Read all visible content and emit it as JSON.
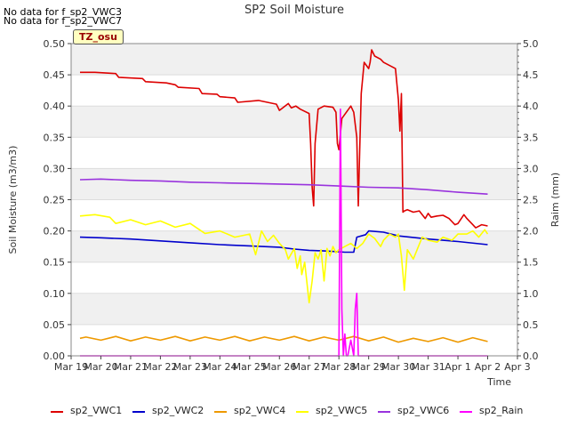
{
  "notes": [
    "No data for f_sp2_VWC3",
    "No data for f_sp2_VWC7"
  ],
  "badge": "TZ_osu",
  "chart_data": {
    "type": "line",
    "title": "SP2 Soil Moisture",
    "xlabel": "Time",
    "ylabel": "Soil Moisture (m3/m3)",
    "y2label": "Raim (mm)",
    "ylim": [
      0.0,
      0.5
    ],
    "y2lim": [
      0.0,
      5.0
    ],
    "xlim": [
      0,
      15
    ],
    "y_ticks": [
      "0.00",
      "0.05",
      "0.10",
      "0.15",
      "0.20",
      "0.25",
      "0.30",
      "0.35",
      "0.40",
      "0.45",
      "0.50"
    ],
    "y2_ticks": [
      "0.0",
      "0.5",
      "1.0",
      "1.5",
      "2.0",
      "2.5",
      "3.0",
      "3.5",
      "4.0",
      "4.5",
      "5.0"
    ],
    "x_ticks": [
      "Mar 19",
      "Mar 20",
      "Mar 21",
      "Mar 22",
      "Mar 23",
      "Mar 24",
      "Mar 25",
      "Mar 26",
      "Mar 27",
      "Mar 28",
      "Mar 29",
      "Mar 30",
      "Mar 31",
      "Apr 1",
      "Apr 2",
      "Apr 3"
    ],
    "grid": true,
    "legend_position": "bottom",
    "series": [
      {
        "name": "sp2_VWC1",
        "color": "#dd0000",
        "axis": "left",
        "x": [
          0.3,
          0.8,
          1.5,
          1.6,
          2.4,
          2.5,
          3.2,
          3.5,
          3.6,
          4.3,
          4.4,
          4.9,
          5.0,
          5.5,
          5.6,
          6.3,
          6.4,
          6.9,
          7.0,
          7.3,
          7.4,
          7.55,
          7.7,
          8.0,
          8.05,
          8.1,
          8.15,
          8.2,
          8.3,
          8.5,
          8.8,
          8.9,
          8.95,
          9.0,
          9.1,
          9.4,
          9.5,
          9.6,
          9.65,
          9.7,
          9.75,
          9.85,
          10.0,
          10.05,
          10.1,
          10.2,
          10.4,
          10.5,
          10.9,
          11.0,
          11.05,
          11.1,
          11.15,
          11.2,
          11.3,
          11.5,
          11.7,
          11.9,
          12.0,
          12.1,
          12.3,
          12.5,
          12.7,
          12.9,
          13.0,
          13.2,
          13.3,
          13.5,
          13.6,
          13.8,
          14.0
        ],
        "y": [
          0.454,
          0.454,
          0.452,
          0.446,
          0.444,
          0.439,
          0.437,
          0.434,
          0.43,
          0.428,
          0.42,
          0.419,
          0.415,
          0.413,
          0.406,
          0.409,
          0.408,
          0.403,
          0.393,
          0.404,
          0.397,
          0.4,
          0.395,
          0.388,
          0.34,
          0.27,
          0.24,
          0.34,
          0.395,
          0.4,
          0.398,
          0.39,
          0.34,
          0.33,
          0.38,
          0.4,
          0.39,
          0.35,
          0.24,
          0.33,
          0.42,
          0.47,
          0.46,
          0.47,
          0.49,
          0.48,
          0.475,
          0.47,
          0.46,
          0.41,
          0.36,
          0.42,
          0.23,
          0.232,
          0.234,
          0.23,
          0.232,
          0.22,
          0.228,
          0.222,
          0.224,
          0.225,
          0.22,
          0.21,
          0.212,
          0.226,
          0.22,
          0.21,
          0.205,
          0.21,
          0.208
        ]
      },
      {
        "name": "sp2_VWC2",
        "color": "#0000cc",
        "axis": "left",
        "x": [
          0.3,
          1.0,
          2.0,
          3.0,
          4.0,
          5.0,
          6.0,
          7.0,
          7.5,
          8.0,
          8.5,
          8.9,
          9.2,
          9.5,
          9.6,
          9.9,
          10.0,
          10.5,
          11.0,
          12.0,
          13.0,
          14.0
        ],
        "y": [
          0.19,
          0.189,
          0.187,
          0.184,
          0.181,
          0.178,
          0.176,
          0.174,
          0.171,
          0.169,
          0.168,
          0.167,
          0.166,
          0.166,
          0.19,
          0.194,
          0.2,
          0.198,
          0.192,
          0.187,
          0.183,
          0.178
        ]
      },
      {
        "name": "sp2_VWC4",
        "color": "#ee9900",
        "axis": "left",
        "x": [
          0.3,
          0.5,
          1.0,
          1.5,
          2.0,
          2.5,
          3.0,
          3.5,
          4.0,
          4.5,
          5.0,
          5.5,
          6.0,
          6.5,
          7.0,
          7.5,
          8.0,
          8.5,
          9.0,
          9.5,
          10.0,
          10.5,
          11.0,
          11.5,
          12.0,
          12.5,
          13.0,
          13.5,
          14.0
        ],
        "y": [
          0.028,
          0.03,
          0.025,
          0.031,
          0.024,
          0.03,
          0.025,
          0.031,
          0.024,
          0.03,
          0.025,
          0.031,
          0.024,
          0.03,
          0.025,
          0.031,
          0.024,
          0.03,
          0.025,
          0.031,
          0.024,
          0.03,
          0.022,
          0.028,
          0.023,
          0.029,
          0.022,
          0.029,
          0.023
        ]
      },
      {
        "name": "sp2_VWC5",
        "color": "#ffff00",
        "axis": "left",
        "x": [
          0.3,
          0.8,
          1.3,
          1.5,
          2.0,
          2.5,
          3.0,
          3.5,
          4.0,
          4.5,
          5.0,
          5.5,
          6.0,
          6.2,
          6.4,
          6.6,
          6.8,
          7.0,
          7.2,
          7.3,
          7.5,
          7.6,
          7.7,
          7.75,
          7.85,
          8.0,
          8.1,
          8.2,
          8.3,
          8.4,
          8.5,
          8.6,
          8.7,
          8.8,
          8.9,
          9.0,
          9.2,
          9.4,
          9.6,
          9.8,
          10.0,
          10.2,
          10.4,
          10.5,
          10.7,
          10.9,
          11.0,
          11.1,
          11.2,
          11.3,
          11.5,
          11.8,
          12.0,
          12.3,
          12.5,
          12.8,
          13.0,
          13.3,
          13.5,
          13.7,
          13.9,
          14.0
        ],
        "y": [
          0.224,
          0.226,
          0.222,
          0.212,
          0.218,
          0.21,
          0.216,
          0.206,
          0.212,
          0.196,
          0.2,
          0.19,
          0.195,
          0.162,
          0.2,
          0.183,
          0.193,
          0.18,
          0.17,
          0.155,
          0.172,
          0.14,
          0.16,
          0.13,
          0.15,
          0.085,
          0.12,
          0.165,
          0.155,
          0.17,
          0.12,
          0.172,
          0.16,
          0.175,
          0.165,
          0.17,
          0.175,
          0.18,
          0.172,
          0.18,
          0.195,
          0.188,
          0.175,
          0.185,
          0.195,
          0.19,
          0.195,
          0.16,
          0.105,
          0.17,
          0.155,
          0.19,
          0.185,
          0.182,
          0.19,
          0.185,
          0.195,
          0.195,
          0.2,
          0.19,
          0.202,
          0.195
        ]
      },
      {
        "name": "sp2_VWC6",
        "color": "#9933dd",
        "axis": "left",
        "x": [
          0.3,
          1.0,
          2.0,
          3.0,
          4.0,
          5.0,
          6.0,
          7.0,
          8.0,
          9.0,
          10.0,
          11.0,
          12.0,
          13.0,
          14.0
        ],
        "y": [
          0.282,
          0.283,
          0.281,
          0.28,
          0.278,
          0.277,
          0.276,
          0.275,
          0.274,
          0.272,
          0.27,
          0.269,
          0.266,
          0.262,
          0.259
        ]
      },
      {
        "name": "sp2_Rain",
        "color": "#ff00ff",
        "axis": "right",
        "x": [
          0.3,
          8.9,
          9.0,
          9.05,
          9.1,
          9.15,
          9.2,
          9.25,
          9.3,
          9.4,
          9.5,
          9.55,
          9.6,
          9.65,
          9.7,
          9.8,
          10.0,
          14.0
        ],
        "y": [
          0.0,
          0.0,
          0.0,
          3.95,
          0.75,
          0.0,
          0.35,
          0.0,
          0.0,
          0.25,
          0.0,
          0.75,
          1.0,
          0.0,
          0.0,
          0.0,
          0.0,
          0.0
        ]
      }
    ]
  }
}
